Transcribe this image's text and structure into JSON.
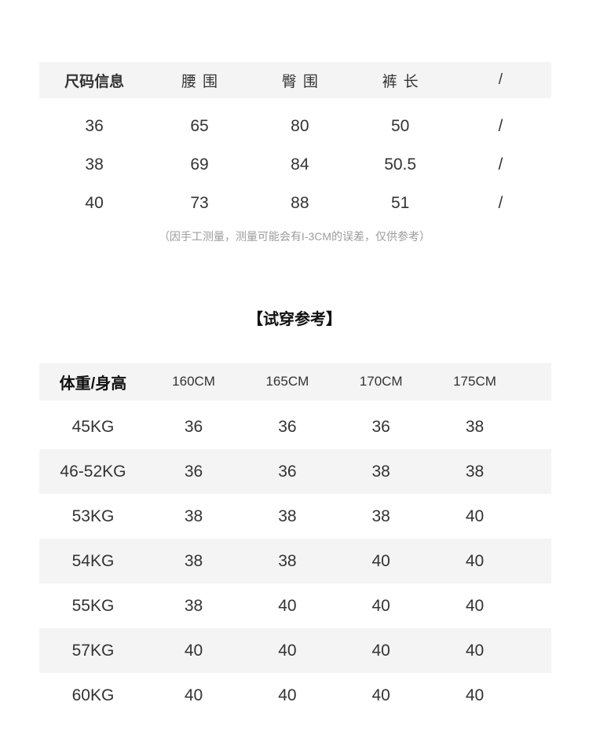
{
  "colors": {
    "page_bg": "#ffffff",
    "band_bg": "#f4f4f4",
    "text": "#333333",
    "muted_text": "#9c9c9c",
    "heading_text": "#111111"
  },
  "size_table": {
    "headers": [
      "尺码信息",
      "腰围",
      "臀围",
      "裤长",
      "/"
    ],
    "rows": [
      [
        "36",
        "65",
        "80",
        "50",
        "/"
      ],
      [
        "38",
        "69",
        "84",
        "50.5",
        "/"
      ],
      [
        "40",
        "73",
        "88",
        "51",
        "/"
      ]
    ],
    "note": "（因手工测量，测量可能会有I-3CM的误差，仅供参考）"
  },
  "fit_reference": {
    "title": "【试穿参考】",
    "headers": [
      "体重/身高",
      "160CM",
      "165CM",
      "170CM",
      "175CM"
    ],
    "rows": [
      [
        "45KG",
        "36",
        "36",
        "36",
        "38"
      ],
      [
        "46-52KG",
        "36",
        "36",
        "38",
        "38"
      ],
      [
        "53KG",
        "38",
        "38",
        "38",
        "40"
      ],
      [
        "54KG",
        "38",
        "38",
        "40",
        "40"
      ],
      [
        "55KG",
        "38",
        "40",
        "40",
        "40"
      ],
      [
        "57KG",
        "40",
        "40",
        "40",
        "40"
      ],
      [
        "60KG",
        "40",
        "40",
        "40",
        "40"
      ]
    ]
  }
}
